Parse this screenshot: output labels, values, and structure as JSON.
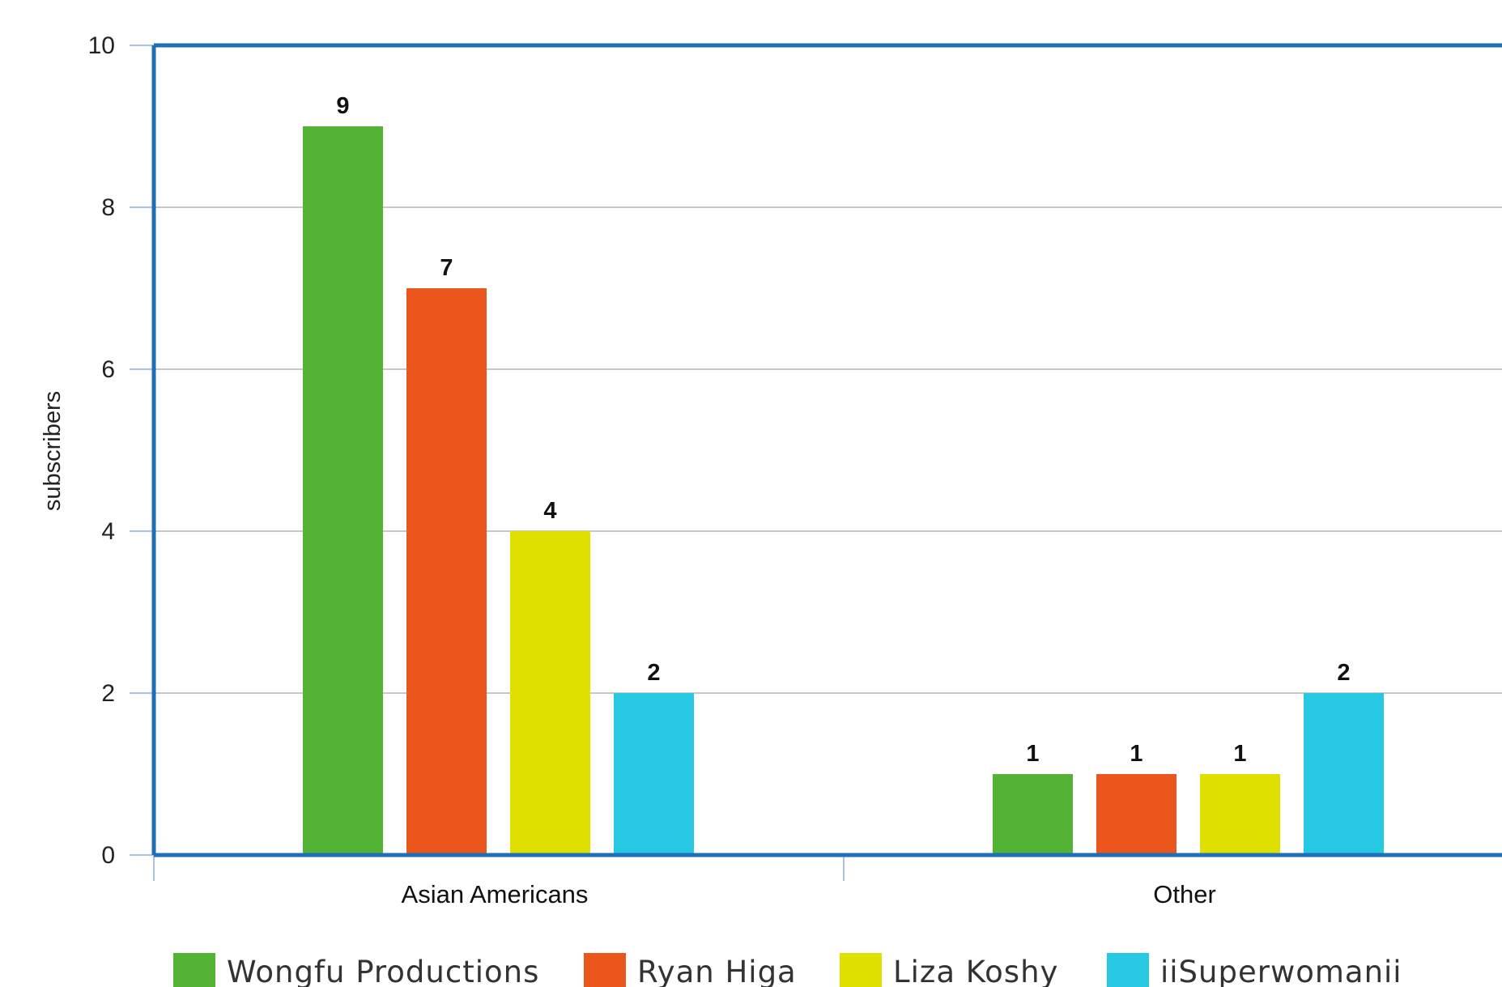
{
  "chart_data": {
    "type": "bar",
    "categories": [
      "Asian Americans",
      "Other"
    ],
    "series": [
      {
        "name": "Wongfu Productions",
        "values": [
          9,
          1
        ],
        "color": "#54b234"
      },
      {
        "name": "Ryan Higa",
        "values": [
          7,
          1
        ],
        "color": "#ea561c"
      },
      {
        "name": "Liza Koshy",
        "values": [
          4,
          1
        ],
        "color": "#dfdf00"
      },
      {
        "name": "iiSuperwomanii",
        "values": [
          2,
          2
        ],
        "color": "#26c8e2"
      }
    ],
    "title": "",
    "xlabel": "",
    "ylabel": "subscribers",
    "ylim": [
      0,
      10
    ],
    "yticks": [
      0,
      2,
      4,
      6,
      8,
      10
    ],
    "grid": true,
    "legend": "bottom",
    "data_labels": true,
    "axis_color": "#1f6fb8",
    "grid_color": "#c8c8c8"
  }
}
